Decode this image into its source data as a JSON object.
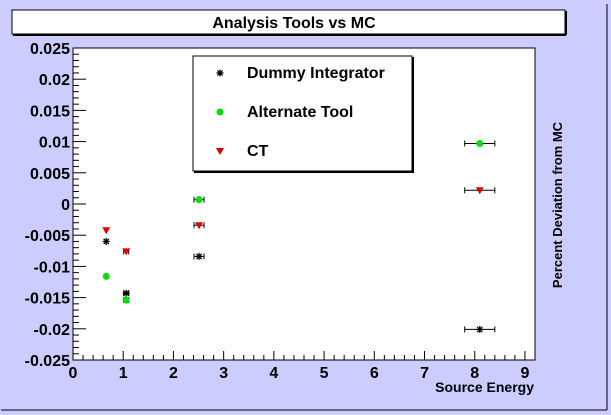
{
  "chart_data": {
    "type": "scatter",
    "title": "Analysis Tools vs MC",
    "xlabel": "Source Energy",
    "ylabel": "Percent Deviation from MC",
    "xlim": [
      0,
      9.2
    ],
    "ylim": [
      -0.025,
      0.025
    ],
    "x_ticks": [
      0,
      1,
      2,
      3,
      4,
      5,
      6,
      7,
      8,
      9
    ],
    "x_tick_labels": [
      "0",
      "1",
      "2",
      "3",
      "4",
      "5",
      "6",
      "7",
      "8",
      "9"
    ],
    "y_ticks": [
      -0.025,
      -0.02,
      -0.015,
      -0.01,
      -0.005,
      0,
      0.005,
      0.01,
      0.015,
      0.02,
      0.025
    ],
    "y_tick_labels": [
      "-0.025",
      "-0.02",
      "-0.015",
      "-0.01",
      "-0.005",
      "0",
      "0.005",
      "0.01",
      "0.015",
      "0.02",
      "0.025"
    ],
    "grid": false,
    "legend_position": "top-center",
    "series": [
      {
        "name": "Dummy Integrator",
        "marker": "star",
        "color": "#000000",
        "points": [
          {
            "x": 0.662,
            "y": -0.006,
            "xerr": 0.0
          },
          {
            "x": 1.06,
            "y": -0.0143,
            "xerr": 0.05
          },
          {
            "x": 2.51,
            "y": -0.0084,
            "xerr": 0.1
          },
          {
            "x": 8.1,
            "y": -0.0201,
            "xerr": 0.3
          }
        ]
      },
      {
        "name": "Alternate Tool",
        "marker": "circle",
        "color": "#00dd00",
        "points": [
          {
            "x": 0.662,
            "y": -0.0116,
            "xerr": 0.0
          },
          {
            "x": 1.06,
            "y": -0.0154,
            "xerr": 0.05
          },
          {
            "x": 2.51,
            "y": 0.0007,
            "xerr": 0.1
          },
          {
            "x": 8.1,
            "y": 0.0097,
            "xerr": 0.3
          }
        ]
      },
      {
        "name": "CT",
        "marker": "triangle-down",
        "color": "#dd0000",
        "points": [
          {
            "x": 0.662,
            "y": -0.0042,
            "xerr": 0.0
          },
          {
            "x": 1.06,
            "y": -0.0076,
            "xerr": 0.05
          },
          {
            "x": 2.51,
            "y": -0.0034,
            "xerr": 0.1
          },
          {
            "x": 8.1,
            "y": 0.0022,
            "xerr": 0.3
          }
        ]
      }
    ]
  }
}
